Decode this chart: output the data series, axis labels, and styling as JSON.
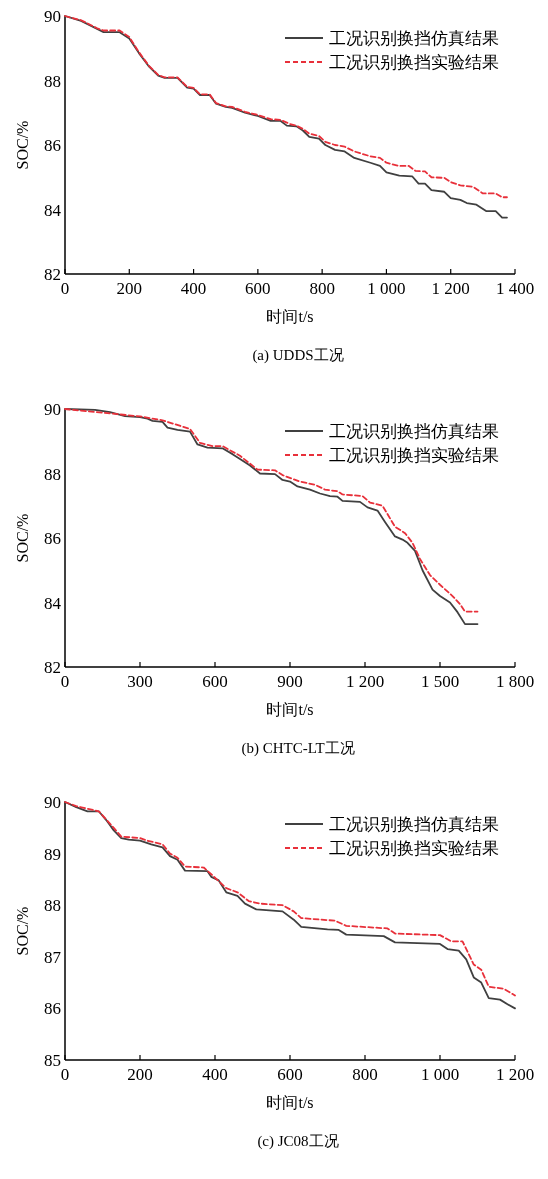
{
  "chart_data": [
    {
      "type": "line",
      "xlabel": "时间t/s",
      "ylabel": "SOC/%",
      "annotations": [
        "(a) UDDS工况"
      ],
      "legend": "top right",
      "xlim": [
        0,
        1400
      ],
      "ylim": [
        82,
        90
      ],
      "xticks": [
        0,
        200,
        400,
        600,
        800,
        {
          "value": 1000,
          "label": "1 000"
        },
        {
          "value": 1200,
          "label": "1 200"
        },
        {
          "value": 1400,
          "label": "1 400"
        }
      ],
      "yticks": [
        82,
        84,
        86,
        88,
        90
      ],
      "series": [
        {
          "name": "工况识别换挡仿真结果",
          "color": "#404040",
          "line_style": "solid",
          "x": [
            0,
            50,
            100,
            120,
            170,
            200,
            230,
            260,
            290,
            310,
            350,
            380,
            400,
            420,
            450,
            470,
            500,
            520,
            560,
            600,
            640,
            670,
            690,
            720,
            740,
            760,
            790,
            810,
            840,
            870,
            900,
            950,
            980,
            1000,
            1040,
            1080,
            1100,
            1120,
            1140,
            1180,
            1200,
            1230,
            1250,
            1280,
            1310,
            1340,
            1360,
            1375
          ],
          "values": [
            90.0,
            89.85,
            89.6,
            89.5,
            89.5,
            89.3,
            88.85,
            88.45,
            88.15,
            88.08,
            88.08,
            87.78,
            87.75,
            87.55,
            87.55,
            87.28,
            87.18,
            87.15,
            87.0,
            86.9,
            86.75,
            86.75,
            86.6,
            86.58,
            86.45,
            86.25,
            86.2,
            86.0,
            85.85,
            85.8,
            85.6,
            85.45,
            85.35,
            85.15,
            85.05,
            85.03,
            84.8,
            84.8,
            84.6,
            84.55,
            84.35,
            84.3,
            84.2,
            84.15,
            83.95,
            83.95,
            83.75,
            83.75
          ]
        },
        {
          "name": "工况识别换挡实验结果",
          "color": "#e8303a",
          "line_style": "dashed",
          "x": [
            0,
            50,
            100,
            120,
            170,
            200,
            230,
            260,
            290,
            310,
            350,
            380,
            400,
            420,
            450,
            470,
            500,
            520,
            560,
            600,
            640,
            670,
            700,
            720,
            740,
            760,
            790,
            810,
            840,
            870,
            900,
            950,
            980,
            1000,
            1040,
            1070,
            1090,
            1120,
            1140,
            1180,
            1200,
            1230,
            1270,
            1300,
            1340,
            1360,
            1375
          ],
          "values": [
            90.0,
            89.87,
            89.62,
            89.55,
            89.55,
            89.35,
            88.88,
            88.47,
            88.17,
            88.1,
            88.1,
            87.8,
            87.77,
            87.57,
            87.57,
            87.3,
            87.2,
            87.18,
            87.03,
            86.93,
            86.8,
            86.78,
            86.65,
            86.6,
            86.5,
            86.35,
            86.28,
            86.1,
            86.0,
            85.95,
            85.8,
            85.65,
            85.6,
            85.45,
            85.35,
            85.35,
            85.2,
            85.18,
            85.0,
            84.98,
            84.85,
            84.75,
            84.7,
            84.5,
            84.5,
            84.38,
            84.38
          ]
        }
      ]
    },
    {
      "type": "line",
      "xlabel": "时间t/s",
      "ylabel": "SOC/%",
      "annotations": [
        "(b) CHTC-LT工况"
      ],
      "legend": "top right",
      "xlim": [
        0,
        1800
      ],
      "ylim": [
        82,
        90
      ],
      "xticks": [
        0,
        300,
        600,
        900,
        {
          "value": 1200,
          "label": "1 200"
        },
        {
          "value": 1500,
          "label": "1 500"
        },
        {
          "value": 1800,
          "label": "1 800"
        }
      ],
      "yticks": [
        82,
        84,
        86,
        88,
        90
      ],
      "series": [
        {
          "name": "工况识别换挡仿真结果",
          "color": "#404040",
          "line_style": "solid",
          "x": [
            0,
            120,
            180,
            240,
            300,
            330,
            350,
            390,
            410,
            450,
            500,
            530,
            570,
            630,
            670,
            700,
            740,
            780,
            840,
            870,
            900,
            930,
            980,
            1020,
            1060,
            1090,
            1110,
            1180,
            1210,
            1250,
            1280,
            1320,
            1350,
            1370,
            1400,
            1430,
            1470,
            1500,
            1540,
            1570,
            1600,
            1650
          ],
          "values": [
            90.0,
            89.97,
            89.9,
            89.78,
            89.75,
            89.7,
            89.63,
            89.6,
            89.42,
            89.35,
            89.3,
            88.9,
            88.8,
            88.78,
            88.6,
            88.45,
            88.25,
            88.0,
            87.98,
            87.8,
            87.75,
            87.6,
            87.5,
            87.38,
            87.3,
            87.28,
            87.15,
            87.12,
            86.95,
            86.85,
            86.5,
            86.05,
            85.95,
            85.85,
            85.6,
            85.0,
            84.4,
            84.2,
            84.0,
            83.7,
            83.33,
            83.33
          ]
        },
        {
          "name": "工况识别换挡实验结果",
          "color": "#e8303a",
          "line_style": "dashed",
          "x": [
            0,
            300,
            390,
            500,
            540,
            590,
            630,
            700,
            770,
            840,
            870,
            940,
            1000,
            1040,
            1090,
            1110,
            1190,
            1220,
            1270,
            1320,
            1360,
            1390,
            1420,
            1460,
            1500,
            1550,
            1580,
            1600,
            1650
          ],
          "values": [
            90.0,
            89.77,
            89.65,
            89.38,
            88.95,
            88.85,
            88.85,
            88.55,
            88.12,
            88.1,
            87.95,
            87.75,
            87.65,
            87.5,
            87.45,
            87.35,
            87.3,
            87.1,
            87.0,
            86.35,
            86.15,
            85.85,
            85.35,
            84.85,
            84.55,
            84.2,
            83.95,
            83.72,
            83.72
          ]
        }
      ]
    },
    {
      "type": "line",
      "xlabel": "时间t/s",
      "ylabel": "SOC/%",
      "annotations": [
        "(c) JC08工况"
      ],
      "legend": "top right",
      "xlim": [
        0,
        1200
      ],
      "ylim": [
        85,
        90
      ],
      "xticks": [
        0,
        200,
        400,
        600,
        800,
        {
          "value": 1000,
          "label": "1 000"
        },
        {
          "value": 1200,
          "label": "1 200"
        }
      ],
      "yticks": [
        85,
        86,
        87,
        88,
        89,
        90
      ],
      "series": [
        {
          "name": "工况识别换挡仿真结果",
          "color": "#404040",
          "line_style": "solid",
          "x": [
            0,
            30,
            60,
            90,
            110,
            130,
            150,
            170,
            200,
            230,
            260,
            280,
            300,
            320,
            380,
            390,
            410,
            430,
            460,
            480,
            510,
            580,
            610,
            630,
            700,
            730,
            750,
            850,
            880,
            1000,
            1020,
            1050,
            1070,
            1090,
            1110,
            1130,
            1160,
            1180,
            1200
          ],
          "values": [
            90.0,
            89.9,
            89.82,
            89.82,
            89.65,
            89.45,
            89.3,
            89.27,
            89.25,
            89.18,
            89.12,
            88.95,
            88.88,
            88.67,
            88.66,
            88.55,
            88.48,
            88.25,
            88.18,
            88.03,
            87.92,
            87.88,
            87.72,
            87.58,
            87.53,
            87.52,
            87.43,
            87.4,
            87.28,
            87.25,
            87.15,
            87.12,
            86.95,
            86.6,
            86.5,
            86.2,
            86.17,
            86.08,
            86.0
          ]
        },
        {
          "name": "工况识别换挡实验结果",
          "color": "#e8303a",
          "line_style": "dashed",
          "x": [
            0,
            30,
            90,
            130,
            150,
            200,
            220,
            260,
            280,
            300,
            320,
            370,
            390,
            430,
            460,
            490,
            520,
            580,
            610,
            630,
            720,
            750,
            860,
            880,
            1000,
            1030,
            1060,
            1090,
            1110,
            1130,
            1170,
            1200
          ],
          "values": [
            90.0,
            89.92,
            89.82,
            89.5,
            89.33,
            89.3,
            89.25,
            89.18,
            89.0,
            88.92,
            88.75,
            88.73,
            88.6,
            88.33,
            88.25,
            88.08,
            88.03,
            88.0,
            87.88,
            87.75,
            87.7,
            87.6,
            87.55,
            87.45,
            87.42,
            87.3,
            87.3,
            86.85,
            86.75,
            86.42,
            86.38,
            86.25
          ]
        }
      ]
    }
  ]
}
